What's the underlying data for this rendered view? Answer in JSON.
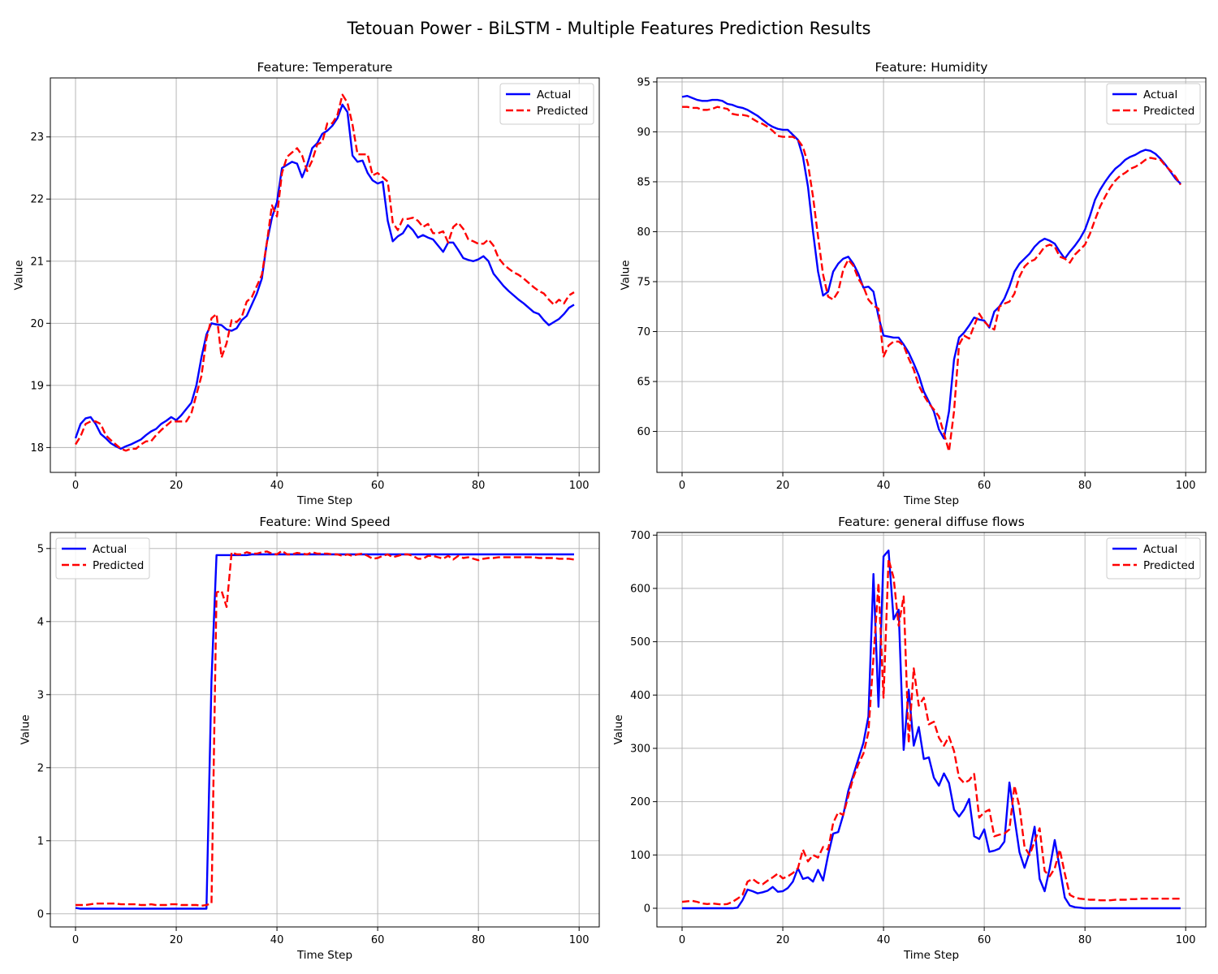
{
  "figure": {
    "title": "Tetouan Power - BiLSTM - Multiple Features Prediction Results"
  },
  "colors": {
    "actual": "#0000ff",
    "predicted": "#ff0000",
    "grid": "#b0b0b0",
    "axes": "#000000"
  },
  "chart_data": [
    {
      "type": "line",
      "title": "Feature: Temperature",
      "xlabel": "Time Step",
      "ylabel": "Value",
      "xlim": [
        -5,
        104
      ],
      "ylim": [
        17.6,
        23.95
      ],
      "xticks": [
        0,
        20,
        40,
        60,
        80,
        100
      ],
      "yticks": [
        18,
        19,
        20,
        21,
        22,
        23
      ],
      "grid": true,
      "legend": "top-right",
      "series": [
        {
          "name": "Actual",
          "style": "solid",
          "values": [
            18.15,
            18.38,
            18.47,
            18.49,
            18.38,
            18.22,
            18.15,
            18.07,
            18.02,
            17.98,
            18.02,
            18.05,
            18.09,
            18.13,
            18.2,
            18.26,
            18.3,
            18.38,
            18.43,
            18.49,
            18.44,
            18.52,
            18.62,
            18.72,
            19.0,
            19.45,
            19.82,
            20.0,
            19.98,
            19.97,
            19.9,
            19.88,
            19.92,
            20.05,
            20.12,
            20.3,
            20.48,
            20.72,
            21.3,
            21.7,
            21.95,
            22.5,
            22.55,
            22.6,
            22.57,
            22.35,
            22.55,
            22.82,
            22.9,
            23.05,
            23.1,
            23.18,
            23.3,
            23.52,
            23.4,
            22.7,
            22.6,
            22.62,
            22.42,
            22.3,
            22.25,
            22.28,
            21.65,
            21.32,
            21.4,
            21.45,
            21.58,
            21.5,
            21.38,
            21.42,
            21.38,
            21.35,
            21.25,
            21.15,
            21.3,
            21.3,
            21.18,
            21.05,
            21.02,
            21.0,
            21.03,
            21.08,
            21.0,
            20.8,
            20.7,
            20.6,
            20.52,
            20.45,
            20.38,
            20.32,
            20.25,
            20.18,
            20.15,
            20.05,
            19.97,
            20.02,
            20.07,
            20.15,
            20.25,
            20.3
          ]
        },
        {
          "name": "Predicted",
          "style": "dashed",
          "values": [
            18.05,
            18.18,
            18.38,
            18.42,
            18.42,
            18.38,
            18.2,
            18.12,
            18.05,
            17.98,
            17.95,
            17.98,
            17.98,
            18.05,
            18.1,
            18.1,
            18.2,
            18.28,
            18.35,
            18.42,
            18.42,
            18.42,
            18.42,
            18.55,
            18.85,
            19.15,
            19.75,
            20.08,
            20.15,
            19.45,
            19.68,
            20.05,
            20.02,
            20.1,
            20.35,
            20.42,
            20.6,
            20.78,
            21.3,
            21.9,
            21.72,
            22.42,
            22.68,
            22.75,
            22.82,
            22.7,
            22.45,
            22.62,
            22.88,
            22.92,
            23.22,
            23.22,
            23.35,
            23.68,
            23.55,
            23.2,
            22.72,
            22.72,
            22.72,
            22.38,
            22.42,
            22.35,
            22.28,
            21.62,
            21.5,
            21.68,
            21.68,
            21.7,
            21.65,
            21.55,
            21.6,
            21.45,
            21.45,
            21.48,
            21.3,
            21.55,
            21.62,
            21.52,
            21.35,
            21.32,
            21.28,
            21.28,
            21.35,
            21.25,
            21.05,
            20.95,
            20.88,
            20.82,
            20.78,
            20.72,
            20.65,
            20.58,
            20.52,
            20.48,
            20.38,
            20.3,
            20.38,
            20.32,
            20.45,
            20.5
          ]
        }
      ]
    },
    {
      "type": "line",
      "title": "Feature: Humidity",
      "xlabel": "Time Step",
      "ylabel": "Value",
      "xlim": [
        -5,
        104
      ],
      "ylim": [
        55.9,
        95.4
      ],
      "xticks": [
        0,
        20,
        40,
        60,
        80,
        100
      ],
      "yticks": [
        60,
        65,
        70,
        75,
        80,
        85,
        90,
        95
      ],
      "grid": true,
      "legend": "top-right",
      "series": [
        {
          "name": "Actual",
          "style": "solid",
          "values": [
            93.5,
            93.6,
            93.4,
            93.2,
            93.1,
            93.1,
            93.2,
            93.2,
            93.1,
            92.8,
            92.7,
            92.5,
            92.4,
            92.2,
            91.9,
            91.6,
            91.2,
            90.8,
            90.5,
            90.3,
            90.2,
            90.2,
            89.7,
            89.2,
            87.5,
            84.5,
            80.0,
            76.0,
            73.6,
            74.0,
            76.0,
            76.8,
            77.3,
            77.5,
            76.8,
            75.8,
            74.4,
            74.5,
            74.0,
            71.5,
            69.6,
            69.5,
            69.4,
            69.4,
            68.7,
            67.9,
            66.8,
            65.6,
            64.0,
            63.0,
            62.0,
            60.2,
            59.3,
            62.0,
            67.2,
            69.4,
            69.9,
            70.6,
            71.4,
            71.2,
            71.1,
            70.4,
            72.0,
            72.5,
            73.3,
            74.5,
            76.0,
            76.8,
            77.3,
            77.8,
            78.5,
            79.0,
            79.3,
            79.1,
            78.8,
            78.0,
            77.3,
            78.0,
            78.6,
            79.3,
            80.2,
            81.6,
            83.2,
            84.2,
            85.0,
            85.7,
            86.3,
            86.7,
            87.2,
            87.5,
            87.7,
            88.0,
            88.2,
            88.1,
            87.8,
            87.3,
            86.7,
            86.0,
            85.3,
            84.8
          ]
        },
        {
          "name": "Predicted",
          "style": "dashed",
          "values": [
            92.5,
            92.5,
            92.4,
            92.4,
            92.2,
            92.2,
            92.3,
            92.5,
            92.4,
            92.3,
            91.8,
            91.7,
            91.7,
            91.6,
            91.3,
            91.0,
            90.8,
            90.5,
            90.1,
            89.6,
            89.5,
            89.5,
            89.5,
            89.2,
            88.5,
            86.8,
            83.5,
            79.5,
            75.7,
            73.5,
            73.2,
            74.0,
            76.2,
            77.2,
            76.6,
            75.3,
            74.5,
            73.2,
            72.6,
            72.3,
            67.5,
            68.6,
            69.0,
            69.0,
            68.6,
            67.3,
            66.2,
            64.6,
            63.6,
            62.8,
            62.2,
            61.5,
            59.8,
            58.0,
            62.0,
            68.7,
            69.6,
            69.3,
            70.6,
            71.8,
            71.0,
            70.5,
            70.2,
            72.5,
            72.8,
            73.0,
            73.8,
            75.5,
            76.5,
            77.0,
            77.2,
            77.8,
            78.5,
            78.7,
            78.5,
            77.5,
            77.3,
            76.9,
            77.7,
            78.2,
            78.7,
            79.8,
            81.2,
            82.5,
            83.5,
            84.4,
            85.1,
            85.6,
            85.9,
            86.3,
            86.5,
            86.8,
            87.2,
            87.4,
            87.3,
            87.2,
            86.6,
            86.1,
            85.5,
            84.7
          ]
        }
      ]
    },
    {
      "type": "line",
      "title": "Feature: Wind Speed",
      "xlabel": "Time Step",
      "ylabel": "Value",
      "xlim": [
        -5,
        104
      ],
      "ylim": [
        -0.18,
        5.22
      ],
      "xticks": [
        0,
        20,
        40,
        60,
        80,
        100
      ],
      "yticks": [
        0,
        1,
        2,
        3,
        4,
        5
      ],
      "grid": true,
      "legend": "top-left",
      "series": [
        {
          "name": "Actual",
          "style": "solid",
          "values": [
            0.08,
            0.07,
            0.07,
            0.07,
            0.07,
            0.07,
            0.07,
            0.07,
            0.07,
            0.07,
            0.07,
            0.07,
            0.07,
            0.07,
            0.07,
            0.07,
            0.07,
            0.07,
            0.07,
            0.07,
            0.07,
            0.07,
            0.07,
            0.07,
            0.07,
            0.07,
            0.07,
            3.2,
            4.91,
            4.91,
            4.91,
            4.91,
            4.91,
            4.91,
            4.91,
            4.92,
            4.92,
            4.92,
            4.92,
            4.92,
            4.92,
            4.92,
            4.92,
            4.92,
            4.92,
            4.92,
            4.92,
            4.92,
            4.92,
            4.92,
            4.92,
            4.92,
            4.92,
            4.92,
            4.92,
            4.92,
            4.92,
            4.92,
            4.92,
            4.92,
            4.92,
            4.92,
            4.92,
            4.92,
            4.92,
            4.92,
            4.92,
            4.92,
            4.92,
            4.92,
            4.92,
            4.92,
            4.92,
            4.92,
            4.92,
            4.92,
            4.92,
            4.92,
            4.92,
            4.92,
            4.92,
            4.92,
            4.92,
            4.92,
            4.92,
            4.92,
            4.92,
            4.92,
            4.92,
            4.92,
            4.92,
            4.92,
            4.92,
            4.92,
            4.92,
            4.92,
            4.92,
            4.92,
            4.92,
            4.92
          ]
        },
        {
          "name": "Predicted",
          "style": "dashed",
          "values": [
            0.12,
            0.12,
            0.12,
            0.13,
            0.14,
            0.14,
            0.14,
            0.14,
            0.14,
            0.13,
            0.13,
            0.13,
            0.13,
            0.12,
            0.12,
            0.13,
            0.12,
            0.12,
            0.12,
            0.13,
            0.13,
            0.12,
            0.12,
            0.12,
            0.12,
            0.11,
            0.12,
            0.14,
            4.4,
            4.42,
            4.2,
            4.95,
            4.92,
            4.92,
            4.95,
            4.93,
            4.93,
            4.95,
            4.96,
            4.93,
            4.92,
            4.97,
            4.92,
            4.92,
            4.94,
            4.93,
            4.92,
            4.95,
            4.93,
            4.93,
            4.93,
            4.92,
            4.92,
            4.9,
            4.92,
            4.9,
            4.92,
            4.93,
            4.9,
            4.86,
            4.87,
            4.9,
            4.92,
            4.88,
            4.9,
            4.92,
            4.92,
            4.9,
            4.86,
            4.86,
            4.9,
            4.9,
            4.88,
            4.86,
            4.9,
            4.85,
            4.9,
            4.87,
            4.88,
            4.86,
            4.84,
            4.86,
            4.87,
            4.87,
            4.88,
            4.88,
            4.88,
            4.88,
            4.88,
            4.88,
            4.88,
            4.88,
            4.87,
            4.87,
            4.87,
            4.87,
            4.86,
            4.86,
            4.86,
            4.85
          ]
        }
      ]
    },
    {
      "type": "line",
      "title": "Feature: general diffuse flows",
      "xlabel": "Time Step",
      "ylabel": "Value",
      "xlim": [
        -5,
        104
      ],
      "ylim": [
        -35,
        705
      ],
      "xticks": [
        0,
        20,
        40,
        60,
        80,
        100
      ],
      "yticks": [
        0,
        100,
        200,
        300,
        400,
        500,
        600,
        700
      ],
      "grid": true,
      "legend": "top-right",
      "series": [
        {
          "name": "Actual",
          "style": "solid",
          "values": [
            0,
            0,
            0,
            0,
            0,
            0,
            0,
            0,
            0,
            0,
            0,
            1,
            15,
            35,
            32,
            28,
            30,
            33,
            40,
            31,
            32,
            38,
            50,
            75,
            55,
            58,
            50,
            72,
            52,
            100,
            140,
            143,
            175,
            220,
            250,
            280,
            310,
            360,
            627,
            378,
            660,
            671,
            542,
            560,
            297,
            410,
            305,
            340,
            280,
            283,
            245,
            230,
            253,
            235,
            185,
            172,
            185,
            205,
            135,
            130,
            148,
            106,
            108,
            112,
            125,
            236,
            170,
            105,
            76,
            105,
            153,
            55,
            32,
            75,
            128,
            75,
            20,
            5,
            2,
            1,
            0,
            0,
            0,
            0,
            0,
            0,
            0,
            0,
            0,
            0,
            0,
            0,
            0,
            0,
            0,
            0,
            0,
            0,
            0,
            0
          ]
        },
        {
          "name": "Predicted",
          "style": "dashed",
          "values": [
            12,
            13,
            14,
            12,
            9,
            8,
            9,
            8,
            7,
            8,
            12,
            18,
            25,
            50,
            55,
            48,
            45,
            52,
            58,
            65,
            56,
            60,
            66,
            75,
            110,
            88,
            100,
            95,
            115,
            110,
            160,
            180,
            175,
            210,
            245,
            270,
            290,
            330,
            470,
            610,
            395,
            655,
            620,
            530,
            585,
            310,
            450,
            380,
            395,
            345,
            350,
            320,
            305,
            322,
            295,
            245,
            235,
            240,
            252,
            170,
            180,
            185,
            135,
            138,
            140,
            148,
            230,
            190,
            115,
            100,
            125,
            150,
            70,
            60,
            75,
            110,
            65,
            25,
            20,
            18,
            17,
            16,
            16,
            15,
            15,
            15,
            16,
            16,
            16,
            17,
            17,
            18,
            18,
            18,
            18,
            18,
            18,
            18,
            18,
            18
          ]
        }
      ]
    }
  ]
}
